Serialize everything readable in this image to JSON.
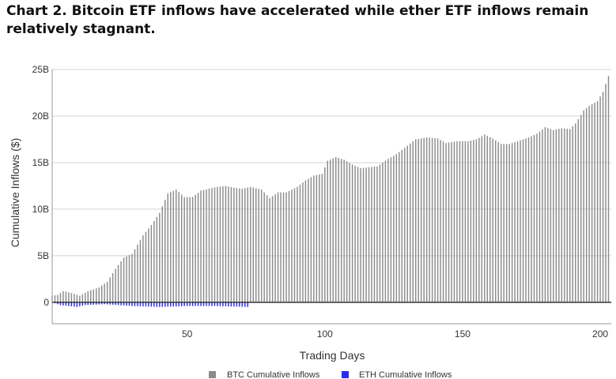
{
  "chart_data": {
    "type": "bar",
    "title": "Chart 2. Bitcoin ETF inflows have accelerated while ether ETF inflows remain relatively stagnant.",
    "xlabel": "Trading Days",
    "ylabel": "Cumulative Inflows ($)",
    "xlim": [
      1,
      204
    ],
    "ylim": [
      -2.3,
      25
    ],
    "x_ticks": [
      {
        "value": 50,
        "label": "50"
      },
      {
        "value": 100,
        "label": "100"
      },
      {
        "value": 150,
        "label": "150"
      },
      {
        "value": 200,
        "label": "200"
      }
    ],
    "y_ticks": [
      {
        "value": 0,
        "label": "0"
      },
      {
        "value": 5,
        "label": "5B"
      },
      {
        "value": 10,
        "label": "10B"
      },
      {
        "value": 15,
        "label": "15B"
      },
      {
        "value": 20,
        "label": "20B"
      },
      {
        "value": 25,
        "label": "25B"
      }
    ],
    "grid": "horizontal",
    "legend_position": "bottom-center",
    "series": [
      {
        "name": "BTC Cumulative Inflows",
        "color": "#8c8c8c",
        "x_start": 1,
        "points": [
          [
            1,
            0.7
          ],
          [
            3,
            0.8
          ],
          [
            5,
            1.2
          ],
          [
            8,
            1.0
          ],
          [
            11,
            0.7
          ],
          [
            14,
            1.2
          ],
          [
            18,
            1.6
          ],
          [
            21,
            2.2
          ],
          [
            24,
            3.6
          ],
          [
            27,
            4.8
          ],
          [
            30,
            5.2
          ],
          [
            34,
            7.2
          ],
          [
            37,
            8.3
          ],
          [
            40,
            9.6
          ],
          [
            43,
            11.7
          ],
          [
            46,
            12.1
          ],
          [
            49,
            11.3
          ],
          [
            52,
            11.3
          ],
          [
            55,
            12.0
          ],
          [
            58,
            12.2
          ],
          [
            61,
            12.4
          ],
          [
            64,
            12.5
          ],
          [
            67,
            12.3
          ],
          [
            70,
            12.2
          ],
          [
            73,
            12.4
          ],
          [
            77,
            12.1
          ],
          [
            80,
            11.2
          ],
          [
            83,
            11.8
          ],
          [
            86,
            11.8
          ],
          [
            90,
            12.4
          ],
          [
            93,
            13.1
          ],
          [
            96,
            13.6
          ],
          [
            99,
            13.8
          ],
          [
            101,
            15.2
          ],
          [
            104,
            15.6
          ],
          [
            107,
            15.3
          ],
          [
            110,
            14.8
          ],
          [
            113,
            14.4
          ],
          [
            116,
            14.5
          ],
          [
            119,
            14.6
          ],
          [
            123,
            15.4
          ],
          [
            126,
            15.9
          ],
          [
            129,
            16.6
          ],
          [
            133,
            17.5
          ],
          [
            137,
            17.7
          ],
          [
            141,
            17.6
          ],
          [
            144,
            17.1
          ],
          [
            148,
            17.3
          ],
          [
            152,
            17.3
          ],
          [
            155,
            17.5
          ],
          [
            158,
            18.0
          ],
          [
            161,
            17.6
          ],
          [
            164,
            17.0
          ],
          [
            167,
            17.0
          ],
          [
            170,
            17.3
          ],
          [
            174,
            17.7
          ],
          [
            177,
            18.1
          ],
          [
            180,
            18.8
          ],
          [
            183,
            18.5
          ],
          [
            186,
            18.7
          ],
          [
            189,
            18.6
          ],
          [
            191,
            19.2
          ],
          [
            194,
            20.6
          ],
          [
            196,
            21.1
          ],
          [
            199,
            21.6
          ],
          [
            201,
            22.6
          ],
          [
            203,
            24.3
          ]
        ]
      },
      {
        "name": "ETH Cumulative Inflows",
        "color": "#2b2bf0",
        "x_start": 1,
        "points": [
          [
            1,
            0.0
          ],
          [
            4,
            -0.3
          ],
          [
            7,
            -0.4
          ],
          [
            10,
            -0.5
          ],
          [
            13,
            -0.3
          ],
          [
            20,
            -0.2
          ],
          [
            30,
            -0.4
          ],
          [
            40,
            -0.5
          ],
          [
            50,
            -0.4
          ],
          [
            60,
            -0.4
          ],
          [
            72,
            -0.5
          ]
        ]
      }
    ]
  }
}
